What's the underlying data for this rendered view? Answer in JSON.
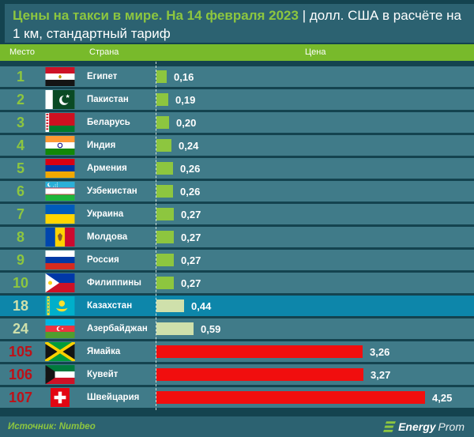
{
  "title": {
    "green_part": "Цены на такси в мире. На 14 февраля 2023",
    "white_part": " | долл. США в расчёте на 1 км, стандартный тариф"
  },
  "header": {
    "rank": "Место",
    "country": "Страна",
    "price": "Цена"
  },
  "rows": [
    {
      "rank": "1",
      "country": "Египет",
      "flag": "egypt",
      "value": 0.16,
      "label": "0,16",
      "tone": "green",
      "highlighted": false
    },
    {
      "rank": "2",
      "country": "Пакистан",
      "flag": "pakistan",
      "value": 0.19,
      "label": "0,19",
      "tone": "green",
      "highlighted": false
    },
    {
      "rank": "3",
      "country": "Беларусь",
      "flag": "belarus",
      "value": 0.2,
      "label": "0,20",
      "tone": "green",
      "highlighted": false
    },
    {
      "rank": "4",
      "country": "Индия",
      "flag": "india",
      "value": 0.24,
      "label": "0,24",
      "tone": "green",
      "highlighted": false
    },
    {
      "rank": "5",
      "country": "Армения",
      "flag": "armenia",
      "value": 0.26,
      "label": "0,26",
      "tone": "green",
      "highlighted": false
    },
    {
      "rank": "6",
      "country": "Узбекистан",
      "flag": "uzbekistan",
      "value": 0.26,
      "label": "0,26",
      "tone": "green",
      "highlighted": false
    },
    {
      "rank": "7",
      "country": "Украина",
      "flag": "ukraine",
      "value": 0.27,
      "label": "0,27",
      "tone": "green",
      "highlighted": false
    },
    {
      "rank": "8",
      "country": "Молдова",
      "flag": "moldova",
      "value": 0.27,
      "label": "0,27",
      "tone": "green",
      "highlighted": false
    },
    {
      "rank": "9",
      "country": "Россия",
      "flag": "russia",
      "value": 0.27,
      "label": "0,27",
      "tone": "green",
      "highlighted": false
    },
    {
      "rank": "10",
      "country": "Филиппины",
      "flag": "philippines",
      "value": 0.27,
      "label": "0,27",
      "tone": "green",
      "highlighted": false
    },
    {
      "rank": "18",
      "country": "Казахстан",
      "flag": "kazakhstan",
      "value": 0.44,
      "label": "0,44",
      "tone": "pale",
      "highlighted": true
    },
    {
      "rank": "24",
      "country": "Азербайджан",
      "flag": "azerbaijan",
      "value": 0.59,
      "label": "0,59",
      "tone": "pale",
      "highlighted": false
    },
    {
      "rank": "105",
      "country": "Ямайка",
      "flag": "jamaica",
      "value": 3.26,
      "label": "3,26",
      "tone": "red",
      "highlighted": false
    },
    {
      "rank": "106",
      "country": "Кувейт",
      "flag": "kuwait",
      "value": 3.27,
      "label": "3,27",
      "tone": "red",
      "highlighted": false
    },
    {
      "rank": "107",
      "country": "Швейцария",
      "flag": "switzerland",
      "value": 4.25,
      "label": "4,25",
      "tone": "red",
      "highlighted": false
    }
  ],
  "footer": {
    "source": "Источник: Numbeo",
    "logo_bold": "Energy",
    "logo_light": "Prom"
  },
  "colors": {
    "page_bg": "#14434f",
    "band_bg": "#2c6271",
    "header_green": "#78ba2b",
    "row_bg": "#407b89",
    "highlight_row": "#0d86aa",
    "accent_green": "#8dc63f",
    "pale_green": "#cfe0ab",
    "bar_red": "#f10e0e",
    "rank_red": "#bd1118"
  },
  "chart_data": {
    "type": "bar",
    "orientation": "horizontal",
    "title": "Цены на такси в мире. На 14 февраля 2023 | долл. США в расчёте на 1 км, стандартный тариф",
    "categories": [
      "Египет",
      "Пакистан",
      "Беларусь",
      "Индия",
      "Армения",
      "Узбекистан",
      "Украина",
      "Молдова",
      "Россия",
      "Филиппины",
      "Казахстан",
      "Азербайджан",
      "Ямайка",
      "Кувейт",
      "Швейцария"
    ],
    "ranks": [
      1,
      2,
      3,
      4,
      5,
      6,
      7,
      8,
      9,
      10,
      18,
      24,
      105,
      106,
      107
    ],
    "values": [
      0.16,
      0.19,
      0.2,
      0.24,
      0.26,
      0.26,
      0.27,
      0.27,
      0.27,
      0.27,
      0.44,
      0.59,
      3.26,
      3.27,
      4.25
    ],
    "xlabel": "Цена, долл. США за 1 км",
    "ylabel": "Страна",
    "xlim": [
      0,
      4.25
    ],
    "grid": false,
    "legend": false,
    "highlighted_category": "Казахстан",
    "source": "Numbeo"
  }
}
